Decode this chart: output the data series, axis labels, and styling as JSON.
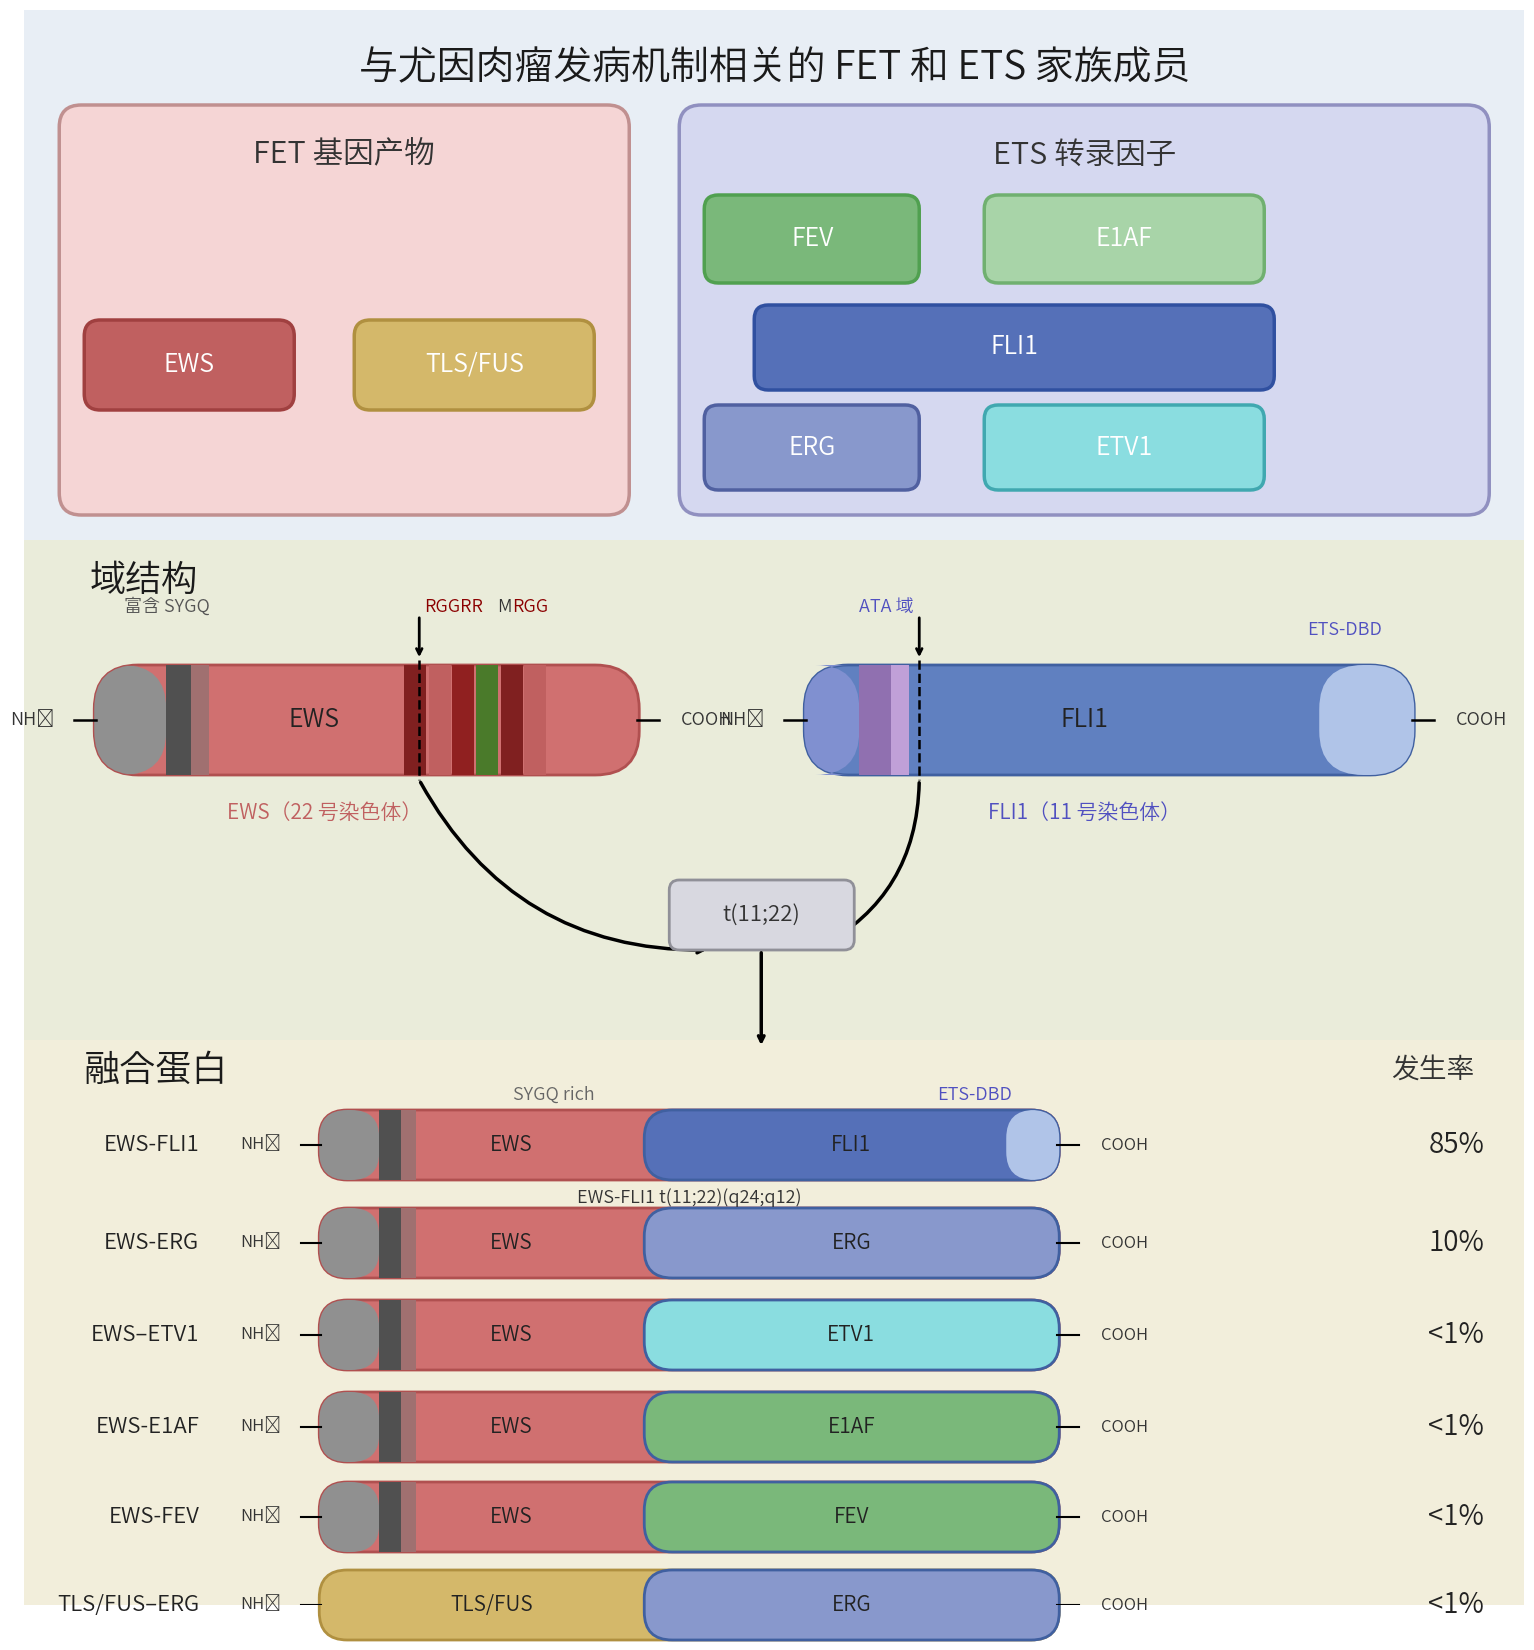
{
  "title": "与尤因肉瘤发病机制相关的 FET 和 ETS 家族成员",
  "bg_top": "#e8eef5",
  "bg_domain": "#eaecda",
  "bg_fusion": "#f2eedb",
  "fet_box_fill": "#f5d5d5",
  "fet_box_edge": "#c09090",
  "ets_box_fill": "#d5d8f0",
  "ets_box_edge": "#9090c0",
  "ews_color": "#c06060",
  "tls_color": "#d4b86a",
  "fev_color": "#7ab87a",
  "e1af_color": "#a8d4a8",
  "fli1_color": "#5570b8",
  "erg_color": "#8898cc",
  "etv1_color": "#8adde0",
  "fusion_rows": [
    {
      "name": "EWS-FLI1",
      "ews_label": "EWS",
      "ets_label": "FLI1",
      "ets_color": "#5570b8",
      "rate": "85%",
      "subtitle": "EWS-FLI1 t(11;22)(q24;q12)",
      "is_ews": true
    },
    {
      "name": "EWS-ERG",
      "ews_label": "EWS",
      "ets_label": "ERG",
      "ets_color": "#8898cc",
      "rate": "10%",
      "subtitle": "",
      "is_ews": true
    },
    {
      "name": "EWS–ETV1",
      "ews_label": "EWS",
      "ets_label": "ETV1",
      "ets_color": "#8adde0",
      "rate": "<1%",
      "subtitle": "",
      "is_ews": true
    },
    {
      "name": "EWS-E1AF",
      "ews_label": "EWS",
      "ets_label": "E1AF",
      "ets_color": "#7ab87a",
      "rate": "<1%",
      "subtitle": "",
      "is_ews": true
    },
    {
      "name": "EWS-FEV",
      "ews_label": "EWS",
      "ets_label": "FEV",
      "ets_color": "#7ab87a",
      "rate": "<1%",
      "subtitle": "",
      "is_ews": true
    },
    {
      "name": "TLS/FUS–ERG",
      "ews_label": "TLS/FUS",
      "ets_label": "ERG",
      "ets_color": "#8898cc",
      "rate": "<1%",
      "subtitle": "",
      "is_ews": false
    }
  ]
}
